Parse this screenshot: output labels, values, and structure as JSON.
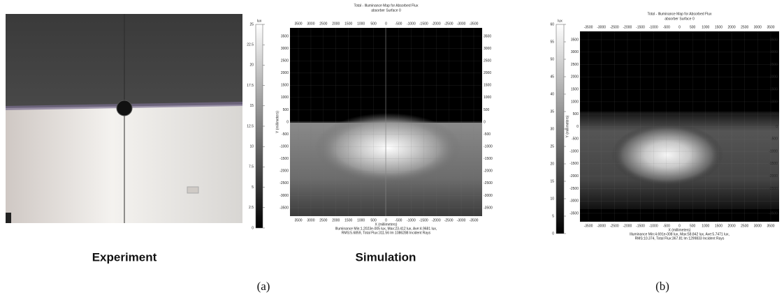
{
  "panel_a": {
    "photo_label": "Experiment",
    "simulation_label": "Simulation",
    "caption": "(a)",
    "map": {
      "title": "Total - Illuminance Map for Absorbed Flux",
      "subtitle": "absorber Surface 0",
      "colorbar_unit": "lux",
      "colorbar_ticks": [
        25,
        22.5,
        20,
        17.5,
        15,
        12.5,
        10,
        7.5,
        5,
        2.5,
        0
      ],
      "x_ticks": [
        3500,
        3000,
        2500,
        2000,
        1500,
        1000,
        500,
        0,
        -500,
        -1000,
        -1500,
        -2000,
        -2500,
        -3000,
        -3500
      ],
      "y_ticks": [
        3500,
        3000,
        2500,
        2000,
        1500,
        1000,
        500,
        0,
        -500,
        -1000,
        -1500,
        -2000,
        -2500,
        -3000,
        -3500
      ],
      "y_label": "Y (millimeters)",
      "x_label": "X (millimeters)",
      "footer": [
        "Illuminance Min:1.2023e-005 lux, Max:23.412 lux, Ave:4.9681 lux,",
        "RMS:5.6859, Total Flux:311.56 lm 1086288 Incident Rays"
      ]
    }
  },
  "panel_b": {
    "caption": "(b)",
    "map": {
      "title": "Total - Illuminance Map for Absorbed Flux",
      "subtitle": "absorber Surface 0",
      "colorbar_unit": "lux",
      "colorbar_ticks": [
        60,
        55,
        50,
        45,
        40,
        35,
        30,
        25,
        20,
        15,
        10,
        5,
        0
      ],
      "x_ticks": [
        -3500,
        -3000,
        -2500,
        -2000,
        -1500,
        -1000,
        -500,
        0,
        500,
        1000,
        1500,
        2000,
        2500,
        3000,
        3500
      ],
      "y_ticks": [
        3500,
        3000,
        2500,
        2000,
        1500,
        1000,
        500,
        0,
        -500,
        -1000,
        -1500,
        -2000,
        -2500,
        -3000,
        -3500
      ],
      "y_label": "Y (millimeters)",
      "x_label": "X (millimeters)",
      "footer": [
        "Illuminance Min:4.691e-008 lux, Max:58.842 lux, Ave:5.7471 lux,",
        "RMS:10.374, Total Flux:367.81 lm 1299833 Incident Rays"
      ]
    }
  }
}
